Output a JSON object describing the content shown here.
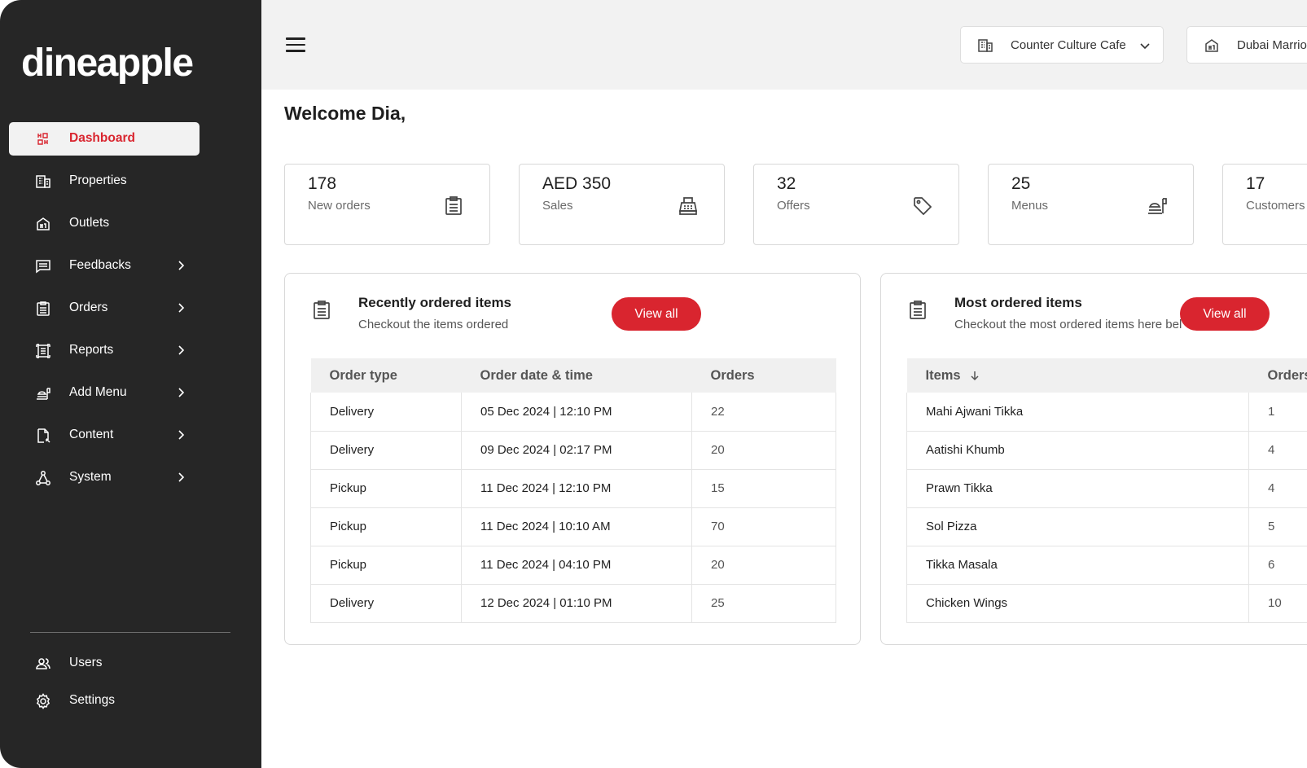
{
  "app": {
    "logo": "dineapple"
  },
  "sidebar": {
    "items": [
      {
        "label": "Dashboard",
        "icon": "dashboard-icon",
        "active": true
      },
      {
        "label": "Properties",
        "icon": "building-icon"
      },
      {
        "label": "Outlets",
        "icon": "store-icon"
      },
      {
        "label": "Feedbacks",
        "icon": "chat-icon",
        "has_submenu": true
      },
      {
        "label": "Orders",
        "icon": "clipboard-icon",
        "has_submenu": true
      },
      {
        "label": "Reports",
        "icon": "report-icon",
        "has_submenu": true
      },
      {
        "label": "Add Menu",
        "icon": "food-tray-icon",
        "has_submenu": true
      },
      {
        "label": "Content",
        "icon": "document-icon",
        "has_submenu": true
      },
      {
        "label": "System",
        "icon": "network-icon",
        "has_submenu": true
      }
    ],
    "bottom": [
      {
        "label": "Users",
        "icon": "users-icon"
      },
      {
        "label": "Settings",
        "icon": "gear-icon"
      }
    ]
  },
  "topbar": {
    "outlet_selector": "Counter Culture Cafe",
    "property_selector": "Dubai Marriott Harbour Hotel & Suits"
  },
  "main": {
    "welcome": "Welcome Dia,",
    "stats": [
      {
        "value": "178",
        "label": "New orders",
        "icon": "clipboard-icon"
      },
      {
        "value": "AED 350",
        "label": "Sales",
        "icon": "cash-register-icon"
      },
      {
        "value": "32",
        "label": "Offers",
        "icon": "tag-icon"
      },
      {
        "value": "25",
        "label": "Menus",
        "icon": "food-tray-icon"
      },
      {
        "value": "17",
        "label": "Customers",
        "icon": "users-icon"
      }
    ],
    "recent": {
      "title": "Recently ordered items",
      "subtitle": "Checkout the items ordered",
      "button": "View all",
      "columns": [
        "Order type",
        "Order date & time",
        "Orders"
      ],
      "rows": [
        [
          "Delivery",
          "05 Dec 2024 | 12:10 PM",
          "22"
        ],
        [
          "Delivery",
          "09 Dec 2024 | 02:17 PM",
          "20"
        ],
        [
          "Pickup",
          "11 Dec 2024 | 12:10 PM",
          "15"
        ],
        [
          "Pickup",
          "11 Dec 2024 | 10:10 AM",
          "70"
        ],
        [
          "Pickup",
          "11 Dec 2024 | 04:10 PM",
          "20"
        ],
        [
          "Delivery",
          "12 Dec 2024 | 01:10 PM",
          "25"
        ]
      ]
    },
    "most": {
      "title": "Most ordered items",
      "subtitle": "Checkout the most ordered items here bel",
      "button": "View all",
      "columns": [
        "Items",
        "Orders"
      ],
      "rows": [
        [
          "Mahi Ajwani Tikka",
          "1"
        ],
        [
          "Aatishi Khumb",
          "4"
        ],
        [
          "Prawn Tikka",
          "4"
        ],
        [
          "Sol Pizza",
          "5"
        ],
        [
          "Tikka Masala",
          "6"
        ],
        [
          "Chicken Wings",
          "10"
        ]
      ]
    }
  },
  "colors": {
    "accent": "#d9252f",
    "sidebar_bg": "#262626",
    "topbar_bg": "#f2f2f2"
  }
}
